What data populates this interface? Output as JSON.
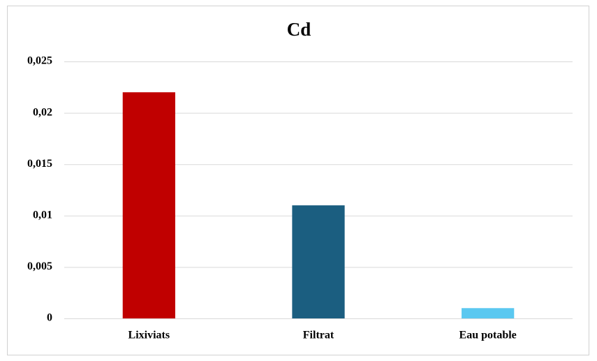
{
  "chart_data": {
    "type": "bar",
    "title": "Cd",
    "categories": [
      "Lixiviats",
      "Filtrat",
      "Eau potable"
    ],
    "values": [
      0.022,
      0.011,
      0.001
    ],
    "colors": [
      "#c00000",
      "#1b5e80",
      "#5bc8f0"
    ],
    "ylim": [
      0,
      0.025
    ],
    "yticks": [
      0,
      {
        "value": 0.005,
        "label": "0,005"
      },
      {
        "value": 0.01,
        "label": "0,01"
      },
      {
        "value": 0.015,
        "label": "0,015"
      },
      {
        "value": 0.02,
        "label": "0,02"
      },
      {
        "value": 0.025,
        "label": "0,025"
      }
    ],
    "grid": true
  }
}
